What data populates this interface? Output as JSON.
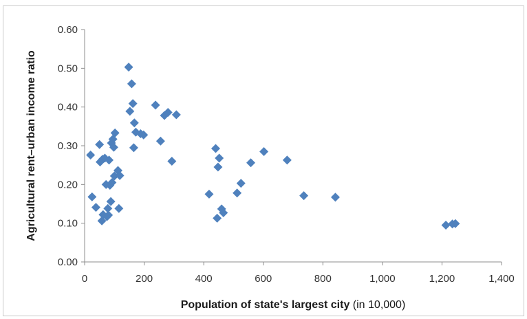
{
  "chart_data": {
    "type": "scatter",
    "title": "",
    "xlabel_bold": "Population of state's largest city",
    "xlabel_rest": " (in 10,000)",
    "ylabel": "Agricultural rent–urban income ratio",
    "xlim": [
      0,
      1400
    ],
    "ylim": [
      0,
      0.6
    ],
    "x_ticks": [
      0,
      200,
      400,
      600,
      800,
      1000,
      1200,
      1400
    ],
    "x_tick_labels": [
      "0",
      "200",
      "400",
      "600",
      "800",
      "1,000",
      "1,200",
      "1,400"
    ],
    "y_ticks": [
      0,
      0.1,
      0.2,
      0.3,
      0.4,
      0.5,
      0.6
    ],
    "y_tick_labels": [
      "0.00",
      "0.10",
      "0.20",
      "0.30",
      "0.40",
      "0.50",
      "0.60"
    ],
    "grid": false,
    "marker": "diamond",
    "color": "#4f81bd",
    "points": [
      [
        20,
        0.276
      ],
      [
        25,
        0.168
      ],
      [
        38,
        0.141
      ],
      [
        50,
        0.303
      ],
      [
        52,
        0.258
      ],
      [
        60,
        0.265
      ],
      [
        58,
        0.106
      ],
      [
        62,
        0.122
      ],
      [
        68,
        0.268
      ],
      [
        72,
        0.2
      ],
      [
        75,
        0.117
      ],
      [
        78,
        0.138
      ],
      [
        80,
        0.121
      ],
      [
        82,
        0.263
      ],
      [
        85,
        0.198
      ],
      [
        88,
        0.156
      ],
      [
        90,
        0.307
      ],
      [
        92,
        0.205
      ],
      [
        95,
        0.317
      ],
      [
        98,
        0.296
      ],
      [
        100,
        0.222
      ],
      [
        102,
        0.333
      ],
      [
        112,
        0.236
      ],
      [
        115,
        0.138
      ],
      [
        118,
        0.223
      ],
      [
        148,
        0.503
      ],
      [
        152,
        0.389
      ],
      [
        158,
        0.46
      ],
      [
        162,
        0.409
      ],
      [
        165,
        0.295
      ],
      [
        167,
        0.359
      ],
      [
        172,
        0.335
      ],
      [
        188,
        0.331
      ],
      [
        198,
        0.328
      ],
      [
        238,
        0.405
      ],
      [
        255,
        0.312
      ],
      [
        268,
        0.378
      ],
      [
        280,
        0.386
      ],
      [
        293,
        0.26
      ],
      [
        308,
        0.38
      ],
      [
        418,
        0.175
      ],
      [
        440,
        0.293
      ],
      [
        445,
        0.113
      ],
      [
        448,
        0.245
      ],
      [
        452,
        0.268
      ],
      [
        460,
        0.137
      ],
      [
        466,
        0.127
      ],
      [
        512,
        0.178
      ],
      [
        525,
        0.203
      ],
      [
        558,
        0.256
      ],
      [
        602,
        0.285
      ],
      [
        680,
        0.263
      ],
      [
        736,
        0.171
      ],
      [
        842,
        0.167
      ],
      [
        1213,
        0.095
      ],
      [
        1235,
        0.098
      ],
      [
        1245,
        0.099
      ]
    ]
  }
}
